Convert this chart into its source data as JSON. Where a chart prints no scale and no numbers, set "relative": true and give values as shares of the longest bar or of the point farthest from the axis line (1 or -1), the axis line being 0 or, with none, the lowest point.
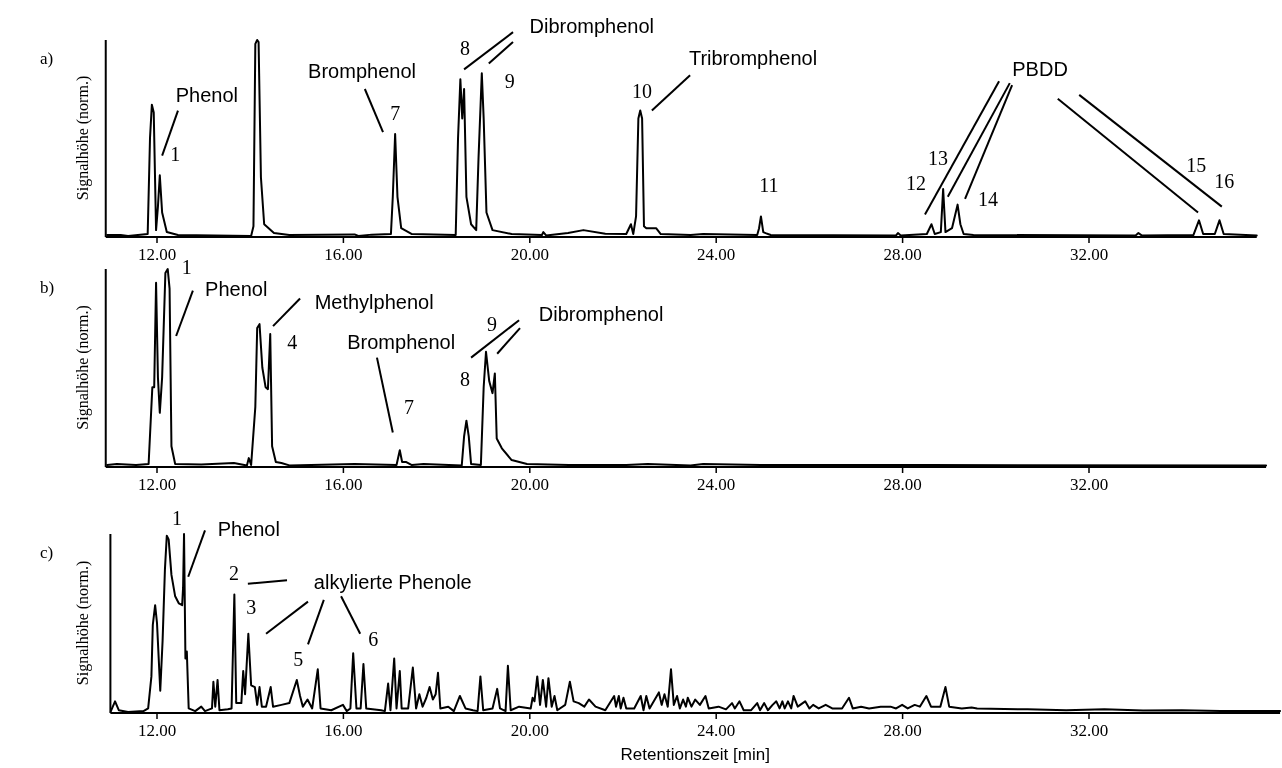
{
  "chart_data": [
    {
      "type": "line",
      "title": "a)",
      "ylabel": "Signalhöhe (norm.)",
      "relative": true,
      "xlim": [
        10.9,
        35.6
      ],
      "xticks": [
        {
          "value": 12,
          "label": "12.00"
        },
        {
          "value": 16,
          "label": "16.00"
        },
        {
          "value": 20,
          "label": "20.00"
        },
        {
          "value": 24,
          "label": "24.00"
        },
        {
          "value": 28,
          "label": "28.00"
        },
        {
          "value": 32,
          "label": "32.00"
        }
      ],
      "x": [
        10.93,
        11.22,
        11.38,
        11.8,
        11.85,
        11.89,
        11.93,
        11.98,
        12.02,
        12.06,
        12.11,
        12.21,
        12.45,
        14.02,
        14.07,
        14.11,
        14.15,
        14.18,
        14.23,
        14.3,
        14.51,
        14.84,
        16.24,
        16.32,
        16.61,
        17.02,
        17.06,
        17.11,
        17.16,
        17.24,
        17.47,
        18.41,
        18.46,
        18.51,
        18.55,
        18.59,
        18.64,
        18.74,
        18.85,
        18.9,
        18.97,
        19.01,
        19.07,
        19.2,
        19.61,
        20.26,
        20.29,
        20.35,
        20.82,
        21.15,
        21.62,
        22.07,
        22.17,
        22.22,
        22.28,
        22.33,
        22.37,
        22.41,
        22.45,
        22.5,
        22.71,
        22.81,
        23.45,
        23.72,
        24.88,
        24.92,
        24.96,
        25.01,
        25.06,
        25.17,
        27.86,
        27.9,
        27.96,
        28.52,
        28.62,
        28.69,
        28.82,
        28.87,
        28.92,
        29.06,
        29.12,
        29.18,
        29.24,
        29.31,
        29.52,
        33.0,
        33.06,
        33.13,
        34.24,
        34.36,
        34.45,
        34.7,
        34.8,
        34.89,
        35.6
      ],
      "series": [
        {
          "color": "#000000",
          "values": [
            0.005,
            0.005,
            0,
            0.01,
            0.5,
            0.67,
            0.63,
            0.03,
            0.15,
            0.31,
            0.12,
            0.02,
            0.005,
            0,
            0.05,
            0.98,
            1,
            0.99,
            0.3,
            0.06,
            0.015,
            0.005,
            0.008,
            0,
            0.007,
            0.01,
            0.2,
            0.52,
            0.2,
            0.04,
            0.01,
            0.005,
            0.5,
            0.8,
            0.6,
            0.75,
            0.2,
            0.06,
            0.03,
            0.4,
            0.83,
            0.6,
            0.12,
            0.03,
            0.01,
            0.005,
            0.02,
            0.003,
            0.015,
            0.03,
            0.012,
            0.01,
            0.06,
            0.01,
            0.1,
            0.6,
            0.64,
            0.6,
            0.05,
            0.04,
            0.04,
            0.01,
            0.005,
            0.01,
            0.005,
            0.04,
            0.1,
            0.02,
            0.015,
            0.005,
            0.003,
            0.015,
            0.003,
            0.01,
            0.06,
            0.01,
            0.02,
            0.24,
            0.02,
            0.04,
            0.1,
            0.16,
            0.06,
            0.01,
            0.005,
            0.003,
            0.015,
            0.003,
            0.005,
            0.08,
            0.01,
            0.01,
            0.08,
            0.01,
            0.003
          ]
        }
      ],
      "annotations": [
        "Phenol",
        "1",
        "Bromphenol",
        "7",
        "8",
        "Dibromphenol",
        "9",
        "10",
        "Tribromphenol",
        "11",
        "12",
        "13",
        "14",
        "PBDD",
        "15",
        "16"
      ]
    },
    {
      "type": "line",
      "title": "b)",
      "ylabel": "Signalhöhe (norm.)",
      "relative": true,
      "xlim": [
        10.9,
        35.8
      ],
      "xticks": [
        {
          "value": 12,
          "label": "12.00"
        },
        {
          "value": 16,
          "label": "16.00"
        },
        {
          "value": 20,
          "label": "20.00"
        },
        {
          "value": 24,
          "label": "24.00"
        },
        {
          "value": 28,
          "label": "28.00"
        },
        {
          "value": 32,
          "label": "32.00"
        }
      ],
      "x": [
        10.93,
        11.14,
        11.55,
        11.82,
        11.9,
        11.94,
        11.98,
        12.02,
        12.06,
        12.11,
        12.18,
        12.23,
        12.27,
        12.31,
        12.39,
        12.95,
        13.65,
        13.93,
        13.97,
        14.02,
        14.11,
        14.15,
        14.2,
        14.26,
        14.33,
        14.38,
        14.43,
        14.47,
        14.55,
        14.67,
        14.84,
        16.24,
        17.14,
        17.21,
        17.26,
        17.35,
        17.47,
        17.72,
        18.54,
        18.59,
        18.64,
        18.69,
        18.74,
        18.95,
        19.01,
        19.06,
        19.13,
        19.2,
        19.25,
        19.29,
        19.4,
        19.61,
        19.94,
        20.84,
        22.07,
        22.53,
        23.45,
        23.72,
        24.96,
        28.52,
        35.8
      ],
      "series": [
        {
          "color": "#000000",
          "values": [
            0.005,
            0.01,
            0.005,
            0.01,
            0.4,
            0.4,
            0.93,
            0.45,
            0.27,
            0.45,
            0.98,
            1,
            0.9,
            0.1,
            0.01,
            0.008,
            0.015,
            0.003,
            0.04,
            0.005,
            0.3,
            0.7,
            0.72,
            0.5,
            0.4,
            0.39,
            0.67,
            0.1,
            0.02,
            0.015,
            0.003,
            0.01,
            0.005,
            0.08,
            0.02,
            0.02,
            0.005,
            0.01,
            0.003,
            0.15,
            0.23,
            0.15,
            0.01,
            0.005,
            0.4,
            0.58,
            0.43,
            0.37,
            0.47,
            0.14,
            0.09,
            0.03,
            0.01,
            0.005,
            0.005,
            0.01,
            0.003,
            0.01,
            0.005,
            0.005,
            0.002
          ]
        }
      ],
      "annotations": [
        "1",
        "Phenol",
        "Methylphenol",
        "4",
        "Bromphenol",
        "7",
        "8",
        "9",
        "Dibromphenol"
      ]
    },
    {
      "type": "line",
      "title": "c)",
      "ylabel": "Signalhöhe (norm.)",
      "xlabel": "Retentionszeit [min]",
      "relative": true,
      "xlim": [
        11.0,
        36.1
      ],
      "xticks": [
        {
          "value": 12,
          "label": "12.00"
        },
        {
          "value": 16,
          "label": "16.00"
        },
        {
          "value": 20,
          "label": "20.00"
        },
        {
          "value": 24,
          "label": "24.00"
        },
        {
          "value": 28,
          "label": "28.00"
        },
        {
          "value": 32,
          "label": "32.00"
        }
      ],
      "x": [
        11.01,
        11.1,
        11.18,
        11.38,
        11.71,
        11.81,
        11.88,
        11.91,
        11.96,
        12.0,
        12.07,
        12.12,
        12.17,
        12.21,
        12.25,
        12.31,
        12.39,
        12.47,
        12.54,
        12.56,
        12.58,
        12.61,
        12.64,
        12.68,
        12.82,
        12.95,
        13.03,
        13.18,
        13.21,
        13.25,
        13.3,
        13.34,
        13.52,
        13.6,
        13.66,
        13.7,
        13.81,
        13.85,
        13.89,
        13.96,
        14.02,
        14.1,
        14.15,
        14.2,
        14.25,
        14.34,
        14.44,
        14.49,
        14.67,
        14.84,
        15.0,
        15.07,
        15.13,
        15.23,
        15.33,
        15.45,
        15.51,
        15.74,
        15.99,
        16.07,
        16.15,
        16.21,
        16.28,
        16.37,
        16.43,
        16.49,
        16.81,
        16.89,
        16.96,
        17.01,
        17.09,
        17.14,
        17.21,
        17.25,
        17.39,
        17.49,
        17.56,
        17.63,
        17.7,
        17.78,
        17.85,
        17.92,
        17.98,
        18.03,
        18.08,
        18.25,
        18.37,
        18.5,
        18.62,
        18.78,
        18.88,
        18.94,
        19.0,
        19.2,
        19.3,
        19.36,
        19.48,
        19.53,
        19.59,
        19.77,
        20.02,
        20.06,
        20.1,
        20.16,
        20.22,
        20.28,
        20.35,
        20.4,
        20.47,
        20.53,
        20.59,
        20.76,
        20.86,
        20.94,
        21.05,
        21.17,
        21.27,
        21.41,
        21.62,
        21.81,
        21.85,
        21.91,
        21.95,
        22.01,
        22.07,
        22.24,
        22.38,
        22.44,
        22.5,
        22.57,
        22.77,
        22.83,
        22.89,
        22.96,
        23.03,
        23.09,
        23.16,
        23.22,
        23.29,
        23.35,
        23.39,
        23.47,
        23.55,
        23.65,
        23.77,
        23.84,
        24.05,
        24.21,
        24.34,
        24.4,
        24.5,
        24.59,
        24.75,
        24.88,
        24.94,
        25.03,
        25.11,
        25.21,
        25.29,
        25.36,
        25.42,
        25.47,
        25.54,
        25.61,
        25.66,
        25.75,
        25.91,
        26.0,
        26.08,
        26.2,
        26.35,
        26.49,
        26.7,
        26.85,
        26.93,
        27.11,
        27.28,
        27.53,
        27.74,
        27.86,
        27.99,
        28.11,
        28.26,
        28.37,
        28.51,
        28.61,
        28.81,
        28.92,
        29.0,
        29.27,
        29.48,
        29.6,
        30.68,
        31.51,
        32.33,
        33.16,
        33.99,
        34.82,
        36.1
      ],
      "series": [
        {
          "color": "#000000",
          "values": [
            0.005,
            0.06,
            0.01,
            0,
            0.005,
            0.02,
            0.2,
            0.49,
            0.6,
            0.5,
            0.12,
            0.4,
            0.8,
            0.99,
            0.97,
            0.77,
            0.65,
            0.61,
            0.6,
            0.7,
            1,
            0.3,
            0.34,
            0.02,
            0.005,
            0.03,
            0.005,
            0.02,
            0.17,
            0.03,
            0.18,
            0.01,
            0.015,
            0.02,
            0.66,
            0.05,
            0.05,
            0.23,
            0.1,
            0.44,
            0.15,
            0.14,
            0.04,
            0.14,
            0.03,
            0.03,
            0.14,
            0.03,
            0.04,
            0.05,
            0.18,
            0.09,
            0.03,
            0.07,
            0.02,
            0.24,
            0.02,
            0.01,
            0.04,
            0.005,
            0.02,
            0.33,
            0.02,
            0.02,
            0.27,
            0.02,
            0.01,
            0.005,
            0.16,
            0.01,
            0.3,
            0.02,
            0.23,
            0.02,
            0.02,
            0.25,
            0.02,
            0.1,
            0.03,
            0.08,
            0.14,
            0.07,
            0.1,
            0.22,
            0.02,
            0.03,
            0.005,
            0.09,
            0.02,
            0.01,
            0.005,
            0.2,
            0.01,
            0.02,
            0.13,
            0.02,
            0.005,
            0.26,
            0.01,
            0.03,
            0.02,
            0.08,
            0.06,
            0.2,
            0.04,
            0.18,
            0.03,
            0.19,
            0.03,
            0.09,
            0.01,
            0.04,
            0.17,
            0.06,
            0.05,
            0.03,
            0.07,
            0.03,
            0.01,
            0.09,
            0.03,
            0.09,
            0.02,
            0.08,
            0.02,
            0.02,
            0.09,
            0.01,
            0.09,
            0.02,
            0.11,
            0.04,
            0.1,
            0.03,
            0.24,
            0.04,
            0.09,
            0.02,
            0.07,
            0.03,
            0.08,
            0.03,
            0.07,
            0.04,
            0.09,
            0.02,
            0.03,
            0.015,
            0.05,
            0.02,
            0.06,
            0.01,
            0.01,
            0.05,
            0.01,
            0.05,
            0.01,
            0.04,
            0.06,
            0.02,
            0.06,
            0.02,
            0.06,
            0.02,
            0.09,
            0.03,
            0.06,
            0.02,
            0.04,
            0.02,
            0.04,
            0.02,
            0.02,
            0.08,
            0.02,
            0.03,
            0.02,
            0.03,
            0.03,
            0.02,
            0.04,
            0.02,
            0.04,
            0.03,
            0.09,
            0.03,
            0.03,
            0.14,
            0.03,
            0.02,
            0.025,
            0.02,
            0.015,
            0.01,
            0.015,
            0.008,
            0.01,
            0.005,
            0.005
          ]
        }
      ],
      "annotations": [
        "1",
        "Phenol",
        "2",
        "alkylierte Phenole",
        "3",
        "5",
        "6"
      ]
    }
  ]
}
